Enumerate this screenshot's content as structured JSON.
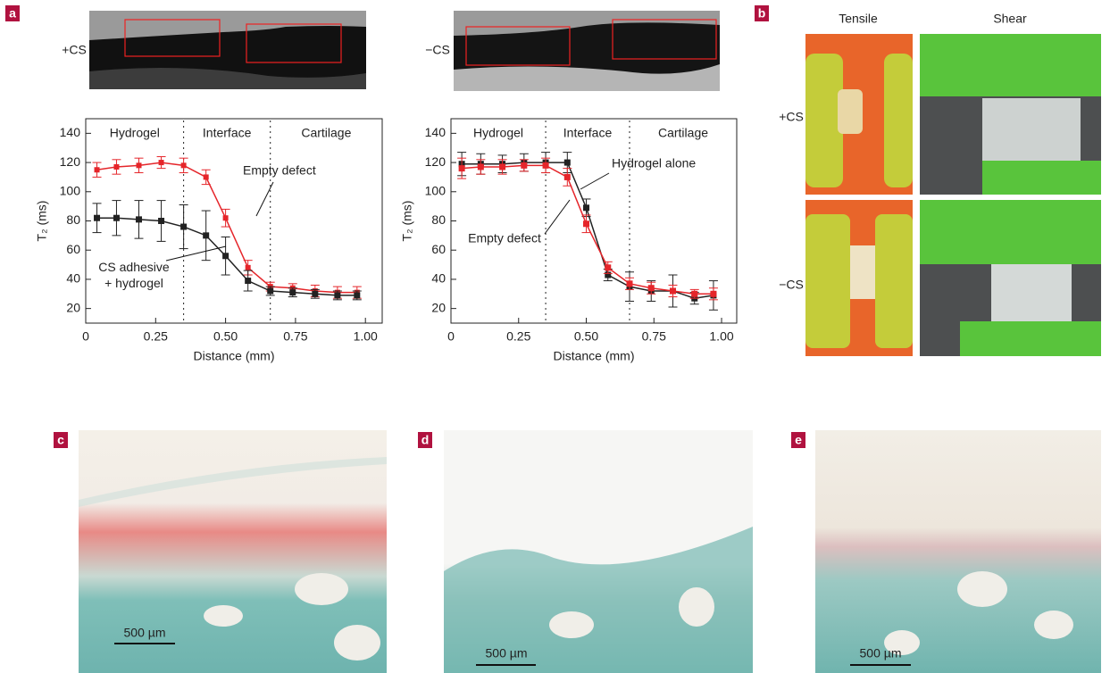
{
  "panel_labels": [
    "a",
    "b",
    "c",
    "d",
    "e"
  ],
  "panel_a": {
    "image_labels": [
      "+CS",
      "−CS"
    ]
  },
  "panel_b": {
    "columns": [
      "Tensile",
      "Shear"
    ],
    "rows": [
      "+CS",
      "−CS"
    ]
  },
  "scale_bars": [
    "500 µm",
    "500 µm",
    "500 µm"
  ],
  "chart_data": [
    {
      "type": "line",
      "xlabel": "Distance (mm)",
      "ylabel": "T₂ (ms)",
      "region_labels": [
        "Hydrogel",
        "Interface",
        "Cartilage"
      ],
      "region_boundaries": [
        0.35,
        0.66
      ],
      "x": [
        0.04,
        0.11,
        0.19,
        0.27,
        0.35,
        0.43,
        0.5,
        0.58,
        0.66,
        0.74,
        0.82,
        0.9,
        0.97
      ],
      "series": [
        {
          "name": "Empty defect",
          "color": "#e5252a",
          "values": [
            115,
            117,
            118,
            120,
            118,
            110,
            82,
            48,
            35,
            34,
            32,
            31,
            31
          ],
          "errors": [
            5,
            5,
            5,
            4,
            5,
            5,
            6,
            5,
            3,
            3,
            4,
            4,
            4
          ]
        },
        {
          "name": "CS adhesive + hydrogel",
          "color": "#222222",
          "values": [
            82,
            82,
            81,
            80,
            76,
            70,
            56,
            39,
            32,
            31,
            30,
            29,
            29
          ],
          "errors": [
            10,
            12,
            13,
            14,
            15,
            17,
            13,
            7,
            3,
            3,
            3,
            3,
            3
          ]
        }
      ],
      "xlim": [
        0,
        1.06
      ],
      "ylim": [
        10,
        150
      ],
      "xticks": [
        0,
        0.25,
        {
          "value": 0.5,
          "label": "0.50"
        },
        0.75,
        {
          "value": 1,
          "label": "1.00"
        }
      ],
      "yticks": [
        20,
        40,
        60,
        80,
        100,
        120,
        140
      ]
    },
    {
      "type": "line",
      "xlabel": "Distance (mm)",
      "ylabel": "T₂ (ms)",
      "region_labels": [
        "Hydrogel",
        "Interface",
        "Cartilage"
      ],
      "region_boundaries": [
        0.35,
        0.66
      ],
      "x": [
        0.04,
        0.11,
        0.19,
        0.27,
        0.35,
        0.43,
        0.5,
        0.58,
        0.66,
        0.74,
        0.82,
        0.9,
        0.97
      ],
      "series": [
        {
          "name": "Hydrogel alone",
          "color": "#222222",
          "values": [
            119,
            119,
            119,
            120,
            120,
            120,
            89,
            43,
            35,
            32,
            32,
            27,
            29
          ],
          "errors": [
            8,
            7,
            6,
            6,
            7,
            7,
            6,
            4,
            10,
            7,
            11,
            4,
            10
          ]
        },
        {
          "name": "Empty defect",
          "color": "#e5252a",
          "values": [
            116,
            117,
            117,
            118,
            118,
            110,
            78,
            48,
            37,
            34,
            32,
            30,
            30
          ],
          "errors": [
            7,
            5,
            5,
            4,
            5,
            6,
            6,
            4,
            4,
            4,
            4,
            3,
            4
          ]
        }
      ],
      "xlim": [
        0,
        1.056
      ],
      "ylim": [
        10,
        150
      ],
      "xticks": [
        0,
        0.25,
        {
          "value": 0.5,
          "label": "0.50"
        },
        0.75,
        {
          "value": 1,
          "label": "1.00"
        }
      ],
      "yticks": [
        20,
        40,
        60,
        80,
        100,
        120,
        140
      ]
    }
  ]
}
